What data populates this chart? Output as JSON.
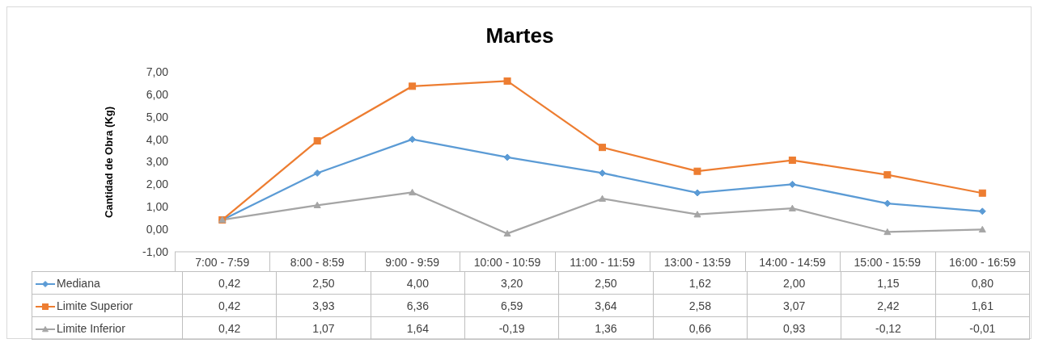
{
  "chart_data": {
    "type": "line",
    "title": "Martes",
    "ylabel": "Cantidad de Obra (Kg)",
    "categories": [
      "7:00 - 7:59",
      "8:00 - 8:59",
      "9:00 - 9:59",
      "10:00 - 10:59",
      "11:00 - 11:59",
      "13:00 - 13:59",
      "14:00 - 14:59",
      "15:00 - 15:59",
      "16:00 - 16:59"
    ],
    "series": [
      {
        "name": "Mediana",
        "color": "#5b9bd5",
        "marker": "diamond",
        "values": [
          0.42,
          2.5,
          4,
          3.2,
          2.5,
          1.62,
          2,
          1.15,
          0.8
        ],
        "value_labels": [
          "0,42",
          "2,50",
          "4,00",
          "3,20",
          "2,50",
          "1,62",
          "2,00",
          "1,15",
          "0,80"
        ]
      },
      {
        "name": "Limite Superior",
        "color": "#ed7d31",
        "marker": "square",
        "values": [
          0.42,
          3.93,
          6.36,
          6.59,
          3.64,
          2.58,
          3.07,
          2.42,
          1.61
        ],
        "value_labels": [
          "0,42",
          "3,93",
          "6,36",
          "6,59",
          "3,64",
          "2,58",
          "3,07",
          "2,42",
          "1,61"
        ]
      },
      {
        "name": "Limite Inferior",
        "color": "#a5a5a5",
        "marker": "triangle",
        "values": [
          0.42,
          1.07,
          1.64,
          -0.19,
          1.36,
          0.66,
          0.93,
          -0.12,
          -0.01
        ],
        "value_labels": [
          "0,42",
          "1,07",
          "1,64",
          "-0,19",
          "1,36",
          "0,66",
          "0,93",
          "-0,12",
          "-0,01"
        ]
      }
    ],
    "ylim": [
      -1,
      7
    ],
    "yticks": [
      {
        "value": -1,
        "label": "-1,00"
      },
      {
        "value": 0,
        "label": "0,00"
      },
      {
        "value": 1,
        "label": "1,00"
      },
      {
        "value": 2,
        "label": "2,00"
      },
      {
        "value": 3,
        "label": "3,00"
      },
      {
        "value": 4,
        "label": "4,00"
      },
      {
        "value": 5,
        "label": "5,00"
      },
      {
        "value": 6,
        "label": "6,00"
      },
      {
        "value": 7,
        "label": "7,00"
      }
    ],
    "grid": false,
    "legend": "bottom",
    "line_style": "solid"
  }
}
